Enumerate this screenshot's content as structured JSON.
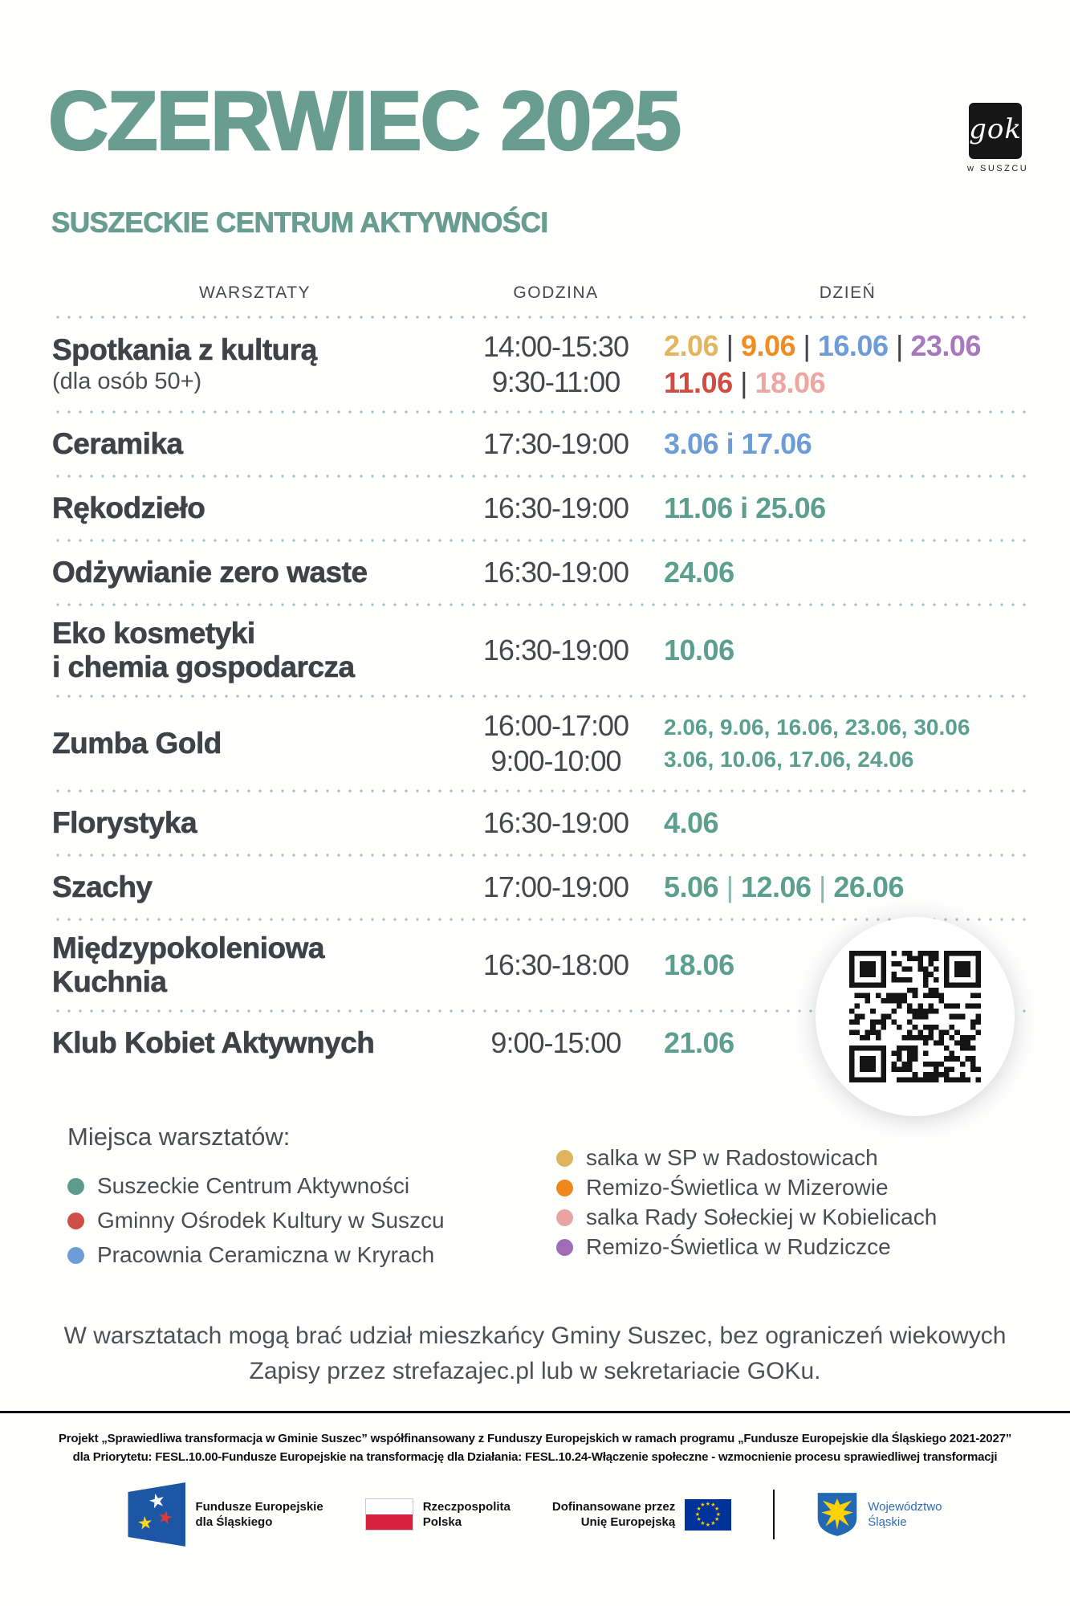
{
  "header": {
    "title": "CZERWIEC 2025",
    "subtitle": "SUSZECKIE CENTRUM AKTYWNOŚCI",
    "logo": {
      "text": "gok",
      "caption": "w SUSZCU"
    }
  },
  "colors": {
    "accent_teal": "#689d90",
    "date_teal": "#5ba08f",
    "gold": "#e3b55f",
    "orange": "#f28c1e",
    "blue": "#6d9cd6",
    "purple": "#a878bc",
    "red": "#d14b42",
    "pink": "#eca7a3",
    "dark": "#3f4347"
  },
  "table": {
    "columns": {
      "workshops": "WARSZTATY",
      "time": "GODZINA",
      "day": "DZIEŃ"
    },
    "rows": [
      {
        "name": "Spotkania z kulturą",
        "subname": "(dla osób 50+)",
        "times": [
          "14:00-15:30",
          "9:30-11:00"
        ],
        "date_lines": [
          [
            {
              "t": "2.06",
              "c": "#e3b55f"
            },
            {
              "t": " | ",
              "c": "#3f4347"
            },
            {
              "t": "9.06",
              "c": "#f28c1e"
            },
            {
              "t": " | ",
              "c": "#3f4347"
            },
            {
              "t": "16.06",
              "c": "#6d9cd6"
            },
            {
              "t": " | ",
              "c": "#3f4347"
            },
            {
              "t": "23.06",
              "c": "#a878bc"
            }
          ],
          [
            {
              "t": "11.06",
              "c": "#d14b42"
            },
            {
              "t": " | ",
              "c": "#3f4347"
            },
            {
              "t": "18.06",
              "c": "#eca7a3"
            }
          ]
        ]
      },
      {
        "name": "Ceramika",
        "times": [
          "17:30-19:00"
        ],
        "date_lines": [
          [
            {
              "t": "3.06 i 17.06",
              "c": "#6d9cd6"
            }
          ]
        ]
      },
      {
        "name": "Rękodzieło",
        "times": [
          "16:30-19:00"
        ],
        "date_lines": [
          [
            {
              "t": "11.06 i 25.06",
              "c": "#5ba08f"
            }
          ]
        ]
      },
      {
        "name": "Odżywianie zero waste",
        "times": [
          "16:30-19:00"
        ],
        "date_lines": [
          [
            {
              "t": "24.06",
              "c": "#5ba08f"
            }
          ]
        ]
      },
      {
        "name": "Eko kosmetyki",
        "name2": "i chemia gospodarcza",
        "times": [
          "16:30-19:00"
        ],
        "date_lines": [
          [
            {
              "t": "10.06",
              "c": "#5ba08f"
            }
          ]
        ]
      },
      {
        "name": "Zumba Gold",
        "times": [
          "16:00-17:00",
          "9:00-10:00"
        ],
        "date_lines": [
          [
            {
              "t": "2.06, 9.06, 16.06, 23.06, 30.06",
              "c": "#5ba08f"
            }
          ],
          [
            {
              "t": "3.06, 10.06, 17.06, 24.06",
              "c": "#5ba08f"
            }
          ]
        ]
      },
      {
        "name": "Florystyka",
        "times": [
          "16:30-19:00"
        ],
        "date_lines": [
          [
            {
              "t": "4.06",
              "c": "#5ba08f"
            }
          ]
        ]
      },
      {
        "name": "Szachy",
        "times": [
          "17:00-19:00"
        ],
        "date_lines": [
          [
            {
              "t": "5.06",
              "c": "#5ba08f"
            },
            {
              "t": " | ",
              "c": "#8ab8ae"
            },
            {
              "t": "12.06",
              "c": "#5ba08f"
            },
            {
              "t": " | ",
              "c": "#8ab8ae"
            },
            {
              "t": "26.06",
              "c": "#5ba08f"
            }
          ]
        ]
      },
      {
        "name": "Międzypokoleniowa",
        "name2": "Kuchnia",
        "times": [
          "16:30-18:00"
        ],
        "date_lines": [
          [
            {
              "t": "18.06",
              "c": "#5ba08f"
            }
          ]
        ]
      },
      {
        "name": "Klub Kobiet Aktywnych",
        "times": [
          "9:00-15:00"
        ],
        "date_lines": [
          [
            {
              "t": "21.06",
              "c": "#5ba08f"
            }
          ]
        ]
      }
    ]
  },
  "legend": {
    "title": "Miejsca warsztatów:",
    "left": [
      {
        "label": "Suszeckie Centrum Aktywności",
        "color": "#5d9b8c"
      },
      {
        "label": "Gminny Ośrodek Kultury w Suszcu",
        "color": "#cd4f46"
      },
      {
        "label": "Pracownia Ceramiczna w Kryrach",
        "color": "#6d9cd6"
      }
    ],
    "right": [
      {
        "label": "salka w SP w Radostowicach",
        "color": "#e0b35e"
      },
      {
        "label": "Remizo-Świetlica w Mizerowie",
        "color": "#f0871a"
      },
      {
        "label": "salka Rady Sołeckiej w Kobielicach",
        "color": "#e8a5a4"
      },
      {
        "label": "Remizo-Świetlica w Rudziczce",
        "color": "#9f6cb8"
      }
    ]
  },
  "note": {
    "line1": "W warsztatach mogą brać udział mieszkańcy Gminy Suszec, bez ograniczeń wiekowych",
    "line2": "Zapisy przez strefazajec.pl lub w sekretariacie GOKu."
  },
  "footer": {
    "line1": "Projekt „Sprawiedliwa transformacja w Gminie Suszec” współfinansowany z Funduszy Europejskich w ramach programu „Fundusze Europejskie dla Śląskiego 2021-2027”",
    "line2": "dla Priorytetu: FESL.10.00-Fundusze Europejskie na transformację dla Działania: FESL.10.24-Włączenie społeczne - wzmocnienie procesu sprawiedliwej transformacji",
    "logos": {
      "fe": {
        "l1": "Fundusze Europejskie",
        "l2": "dla Śląskiego"
      },
      "pl": {
        "l1": "Rzeczpospolita",
        "l2": "Polska"
      },
      "eu": {
        "l1": "Dofinansowane przez",
        "l2": "Unię Europejską"
      },
      "sl": {
        "l1": "Województwo",
        "l2": "Śląskie"
      }
    }
  }
}
